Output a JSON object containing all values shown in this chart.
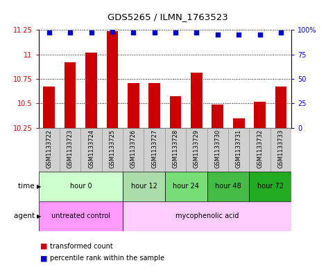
{
  "title": "GDS5265 / ILMN_1763523",
  "samples": [
    "GSM1133722",
    "GSM1133723",
    "GSM1133724",
    "GSM1133725",
    "GSM1133726",
    "GSM1133727",
    "GSM1133728",
    "GSM1133729",
    "GSM1133730",
    "GSM1133731",
    "GSM1133732",
    "GSM1133733"
  ],
  "bar_values": [
    10.67,
    10.92,
    11.02,
    11.24,
    10.71,
    10.71,
    10.57,
    10.81,
    10.49,
    10.35,
    10.52,
    10.67
  ],
  "percentile_values": [
    97,
    97,
    97,
    98,
    97,
    97,
    97,
    97,
    95,
    95,
    95,
    97
  ],
  "ymin": 10.25,
  "ymax": 11.25,
  "yticks": [
    10.25,
    10.5,
    10.75,
    11.0,
    11.25
  ],
  "ytick_labels": [
    "10.25",
    "10.5",
    "10.75",
    "11",
    "11.25"
  ],
  "right_yticks": [
    0,
    25,
    50,
    75,
    100
  ],
  "right_ytick_labels": [
    "0",
    "25",
    "50",
    "75",
    "100%"
  ],
  "bar_color": "#cc0000",
  "percentile_color": "#0000cc",
  "bar_bottom": 10.25,
  "time_groups": [
    {
      "label": "hour 0",
      "start": 0,
      "end": 3,
      "color": "#ccffcc"
    },
    {
      "label": "hour 12",
      "start": 4,
      "end": 5,
      "color": "#aaddaa"
    },
    {
      "label": "hour 24",
      "start": 6,
      "end": 7,
      "color": "#77dd77"
    },
    {
      "label": "hour 48",
      "start": 8,
      "end": 9,
      "color": "#44bb44"
    },
    {
      "label": "hour 72",
      "start": 10,
      "end": 11,
      "color": "#22aa22"
    }
  ],
  "agent_groups": [
    {
      "label": "untreated control",
      "start": 0,
      "end": 3,
      "color": "#ff99ff"
    },
    {
      "label": "mycophenolic acid",
      "start": 4,
      "end": 11,
      "color": "#ffccff"
    }
  ],
  "legend_bar_label": "transformed count",
  "legend_pct_label": "percentile rank within the sample",
  "time_label": "time",
  "agent_label": "agent",
  "axis_color_left": "#cc0000",
  "axis_color_right": "#0000cc",
  "sample_bg_color": "#d0d0d0",
  "sample_edge_color": "#888888"
}
